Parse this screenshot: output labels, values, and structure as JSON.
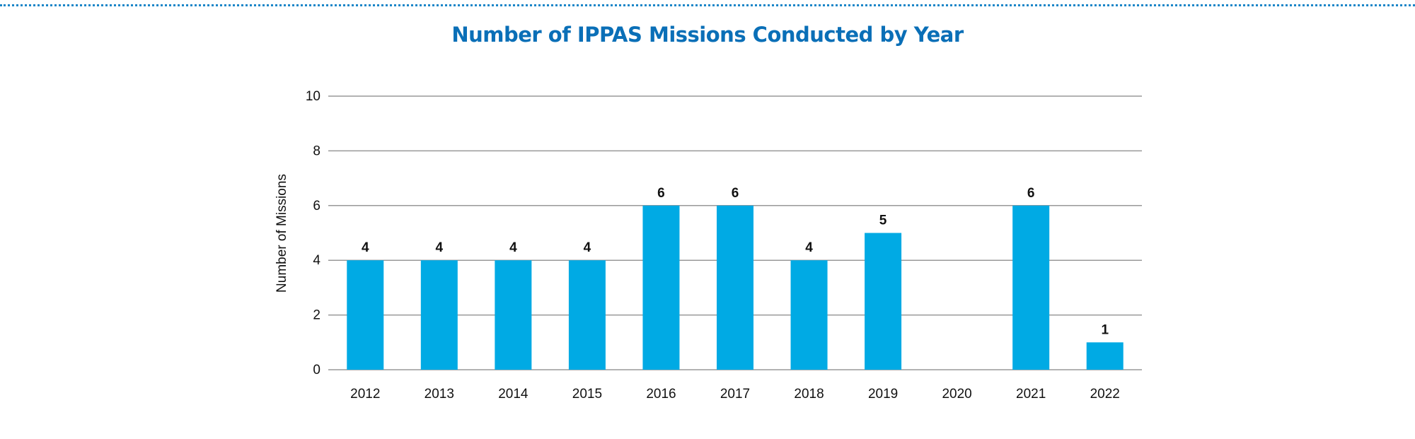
{
  "chart_data": {
    "type": "bar",
    "title": "Number of IPPAS Missions Conducted by Year",
    "xlabel": "",
    "ylabel": "Number of Missions",
    "categories": [
      "2012",
      "2013",
      "2014",
      "2015",
      "2016",
      "2017",
      "2018",
      "2019",
      "2020",
      "2021",
      "2022"
    ],
    "values": [
      4,
      4,
      4,
      4,
      6,
      6,
      4,
      5,
      0,
      6,
      1
    ],
    "data_labels": [
      "4",
      "4",
      "4",
      "4",
      "6",
      "6",
      "4",
      "5",
      "",
      "6",
      "1"
    ],
    "ylim": [
      0,
      10
    ],
    "yticks": [
      0,
      2,
      4,
      6,
      8,
      10
    ],
    "grid": true,
    "legend": "none",
    "colors": {
      "bar": "#00aae4",
      "title": "#0a6fb7",
      "grid": "#999999",
      "text": "#111111",
      "rule": "#1a86c8"
    }
  }
}
